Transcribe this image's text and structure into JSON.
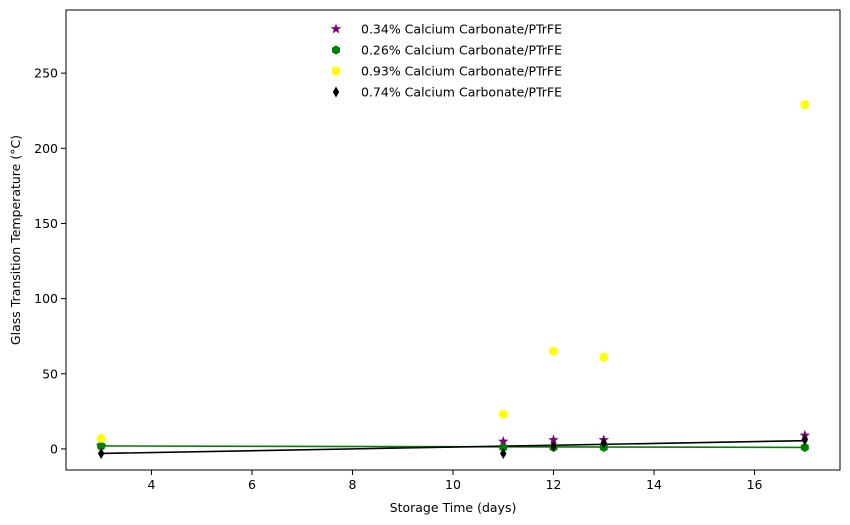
{
  "chart_data": {
    "type": "scatter",
    "title": "",
    "xlabel": "Storage Time (days)",
    "ylabel": "Glass Transition Temperature (°C)",
    "xlim": [
      2.3,
      17.7
    ],
    "ylim": [
      -14,
      292
    ],
    "xticks": [
      4,
      6,
      8,
      10,
      12,
      14,
      16
    ],
    "yticks": [
      0,
      50,
      100,
      150,
      200,
      250
    ],
    "grid": false,
    "legend_position": "top-center",
    "series": [
      {
        "name": "0.34% Calcium Carbonate/PTrFE",
        "marker": "star",
        "color": "#800080",
        "x": [
          3,
          11,
          12,
          13,
          17
        ],
        "y": [
          2,
          5,
          6,
          6,
          9
        ]
      },
      {
        "name": "0.26% Calcium Carbonate/PTrFE",
        "marker": "hexagon",
        "color": "#008000",
        "x": [
          3,
          11,
          12,
          13,
          17
        ],
        "y": [
          2,
          1,
          1,
          1,
          1
        ],
        "fit_line": {
          "x": [
            3,
            17
          ],
          "y": [
            2.0,
            1.0
          ]
        }
      },
      {
        "name": "0.93% Calcium Carbonate/PTrFE",
        "marker": "circle",
        "color": "#ffff00",
        "x": [
          3,
          11,
          12,
          13,
          17
        ],
        "y": [
          7,
          23,
          65,
          61,
          229
        ]
      },
      {
        "name": "0.74% Calcium Carbonate/PTrFE",
        "marker": "thin_diamond",
        "color": "#000000",
        "x": [
          3,
          11,
          12,
          13,
          17
        ],
        "y": [
          -3,
          -3,
          2,
          4,
          6
        ],
        "fit_line": {
          "x": [
            3,
            17
          ],
          "y": [
            -3.0,
            5.5
          ]
        }
      }
    ]
  }
}
